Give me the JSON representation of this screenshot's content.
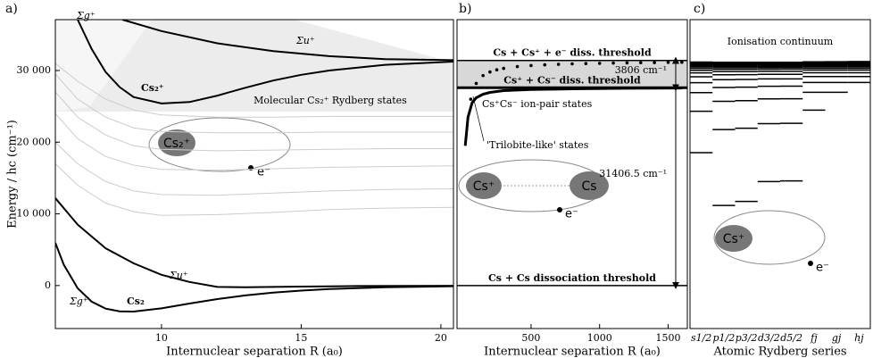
{
  "chart_data": [
    {
      "type": "line",
      "panel_label": "a)",
      "xlabel": "Internuclear separation R (a₀)",
      "ylabel": "Energy / hc (cm⁻¹)",
      "xlim": [
        6.2,
        20.45
      ],
      "ylim": [
        -6000,
        37100
      ],
      "xticks": [
        10,
        15,
        20
      ],
      "yticks": [
        0,
        {
          "value": 10000,
          "label": "10 000"
        },
        {
          "value": 20000,
          "label": "20 000"
        },
        {
          "value": 30000,
          "label": "30 000"
        }
      ],
      "annotations": [
        "Σg⁺",
        "Σu⁺",
        "Cs₂⁺",
        "Molecular Cs₂⁺ Rydberg states",
        "Σu⁺",
        "Cs₂",
        "Σg⁺"
      ],
      "illustration": [
        "Cs₂⁺",
        "e⁻"
      ],
      "series": [
        {
          "color": "#cccccc",
          "x": [
            6.2,
            7,
            8,
            9,
            10,
            12,
            14,
            16,
            18,
            20.45
          ],
          "values": [
            17000,
            14000,
            11500,
            10300,
            9800,
            9900,
            10200,
            10600,
            10800,
            10900
          ]
        },
        {
          "color": "#cccccc",
          "x": [
            6.2,
            7,
            8,
            9,
            10,
            12,
            14,
            16,
            18,
            20.45
          ],
          "values": [
            20000,
            17000,
            14500,
            13200,
            12700,
            12600,
            12900,
            13200,
            13400,
            13500
          ]
        },
        {
          "color": "#cccccc",
          "x": [
            6.2,
            7,
            8,
            9,
            10,
            12,
            14,
            16,
            18,
            20.45
          ],
          "values": [
            24000,
            20500,
            18000,
            16800,
            16200,
            16100,
            16300,
            16500,
            16600,
            16700
          ]
        },
        {
          "color": "#cccccc",
          "x": [
            6.2,
            7,
            8,
            9,
            10,
            12,
            14,
            16,
            18,
            20.45
          ],
          "values": [
            27000,
            23500,
            21000,
            19500,
            19000,
            18800,
            18900,
            19000,
            19100,
            19100
          ]
        },
        {
          "color": "#cccccc",
          "x": [
            6.2,
            7,
            8,
            9,
            10,
            12,
            14,
            16,
            18,
            20.45
          ],
          "values": [
            29500,
            26000,
            23500,
            22000,
            21500,
            21300,
            21300,
            21400,
            21400,
            21400
          ]
        },
        {
          "color": "#cccccc",
          "x": [
            6.2,
            7,
            8,
            9,
            10,
            12,
            14,
            16,
            18,
            20.45
          ],
          "values": [
            31000,
            28500,
            26000,
            24500,
            23800,
            23500,
            23500,
            23600,
            23600,
            23600
          ]
        },
        {
          "color": "#000000",
          "x": [
            6.2,
            6.5,
            7,
            7.5,
            8,
            8.5,
            9,
            10,
            11,
            12,
            13,
            14,
            15,
            16,
            18,
            20.45
          ],
          "values": [
            5960,
            2920,
            -383,
            -2256,
            -3218,
            -3600,
            -3632,
            -3180,
            -2518,
            -1892,
            -1378,
            -988,
            -700,
            -488,
            -237,
            -98
          ]
        },
        {
          "color": "#000000",
          "x": [
            6.2,
            7,
            8,
            9,
            10,
            11,
            12,
            13,
            15,
            17,
            20.45
          ],
          "values": [
            12200,
            8500,
            5200,
            3100,
            1500,
            500,
            -200,
            -250,
            -150,
            -70,
            -30
          ]
        },
        {
          "color": "#000000",
          "x": [
            7,
            7.5,
            8,
            8.5,
            9,
            10,
            11,
            12,
            13,
            14,
            15,
            16,
            18,
            20.45
          ],
          "values": [
            37100,
            33000,
            29800,
            27700,
            26300,
            25400,
            25600,
            26500,
            27600,
            28600,
            29400,
            30000,
            30800,
            31250
          ]
        },
        {
          "color": "#000000",
          "x": [
            8.6,
            10,
            12,
            14,
            16,
            18,
            20.45
          ],
          "values": [
            37100,
            35500,
            33800,
            32700,
            32000,
            31600,
            31450
          ]
        }
      ]
    },
    {
      "type": "line",
      "panel_label": "b)",
      "xlabel": "Internuclear separation R (a₀)",
      "xlim": [
        -40,
        1640
      ],
      "ylim": [
        -6000,
        37100
      ],
      "xticks": [
        500,
        1000,
        1500
      ],
      "thresholds": [
        {
          "value": 0,
          "label": "Cs + Cs dissociation threshold"
        },
        {
          "value": 27600.5,
          "label": "Cs⁺ + Cs⁻ diss. threshold"
        },
        {
          "value": 31406.5,
          "label": "Cs + Cs⁺ + e⁻ diss. threshold"
        }
      ],
      "energy_gaps": [
        {
          "value": 3806,
          "label": "3806 cm⁻¹"
        },
        {
          "value": 31406.5,
          "label": "31406.5 cm⁻¹"
        }
      ],
      "annotations": [
        "Cs⁺Cs⁻ ion-pair states",
        "'Trilobite-like' states"
      ],
      "illustration": [
        "Cs⁺",
        "Cs",
        "e⁻"
      ],
      "series": [
        {
          "color": "#000000",
          "x": [
            20,
            40,
            70,
            100,
            150,
            200,
            300,
            500,
            800,
            1200,
            1600
          ],
          "values": [
            19500,
            23500,
            25500,
            26200,
            26700,
            26950,
            27200,
            27350,
            27450,
            27520,
            27560
          ]
        },
        {
          "color": "#000000",
          "marker": "dot",
          "x": [
            60,
            100,
            150,
            200,
            250,
            300,
            400,
            500,
            600,
            700,
            800,
            900,
            1000,
            1100,
            1200,
            1300,
            1400,
            1500,
            1600
          ],
          "values": [
            26000,
            28200,
            29300,
            29800,
            30100,
            30300,
            30550,
            30700,
            30800,
            30870,
            30930,
            30970,
            31010,
            31040,
            31070,
            31090,
            31110,
            31130,
            31150
          ]
        }
      ]
    },
    {
      "type": "levels",
      "panel_label": "c)",
      "xlabel": "Atomic Rydberg series",
      "ylim": [
        -6000,
        37100
      ],
      "continuum_label": "Ionisation continuum",
      "illustration": [
        "Cs⁺",
        "e⁻"
      ],
      "categories": [
        "s1/2",
        "p1/2",
        "p3/2",
        "d3/2",
        "d5/2",
        "fj",
        "gj",
        "hj"
      ],
      "levels": [
        [
          18535,
          24317,
          26911,
          28300,
          29131,
          29669,
          30038,
          30300,
          30494,
          30641,
          30755,
          30845,
          30918,
          30977,
          31026,
          31067,
          31101,
          31130,
          31155,
          31176
        ],
        [
          11178,
          21765,
          25709,
          27637,
          28727,
          29403,
          29852,
          30164,
          30390,
          30558,
          30687,
          30788,
          30869,
          30934,
          30987,
          31031,
          31068,
          31099,
          31126,
          31149
        ],
        [
          11732,
          21946,
          25791,
          27682,
          28754,
          29420,
          29863,
          30172,
          30396,
          30563,
          30691,
          30791,
          30871,
          30936,
          30989,
          31032,
          31069,
          31100,
          31127,
          31150
        ],
        [
          14499,
          22588,
          26047,
          27811,
          28828,
          29466,
          29894,
          30193,
          30411,
          30574,
          30699,
          30797,
          30876,
          30940,
          30992,
          31035,
          31071,
          31102,
          31128,
          31151
        ],
        [
          14597,
          22631,
          26068,
          27823,
          28835,
          29471,
          29897,
          30195,
          30413,
          30576,
          30700,
          30798,
          30877,
          30941,
          30993,
          31036,
          31072,
          31103,
          31129,
          31152
        ],
        [
          24472,
          26971,
          28330,
          29153,
          29688,
          30055,
          30317,
          30511,
          30658,
          30773,
          30863,
          30936,
          30996,
          31045,
          31086,
          31121,
          31150,
          31175,
          31196,
          31214
        ],
        [
          26971,
          28330,
          29153,
          29688,
          30055,
          30317,
          30511,
          30658,
          30773,
          30863,
          30936,
          30996,
          31045,
          31086,
          31121,
          31150,
          31175,
          31196,
          31214,
          31230
        ],
        [
          28330,
          29153,
          29688,
          30055,
          30317,
          30511,
          30658,
          30773,
          30863,
          30936,
          30996,
          31045,
          31086,
          31121,
          31150,
          31175,
          31196,
          31214,
          31230,
          31244
        ]
      ]
    }
  ]
}
